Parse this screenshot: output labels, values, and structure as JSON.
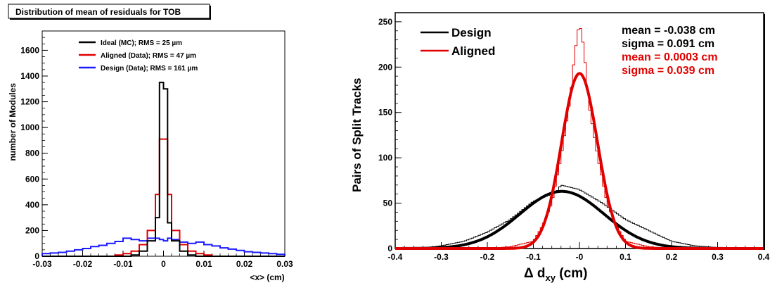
{
  "chart_data": [
    {
      "type": "line",
      "title": "Distribution of mean of residuals for TOB",
      "xlabel": "<x> (cm)",
      "ylabel": "number of Modules",
      "xlim": [
        -0.03,
        0.03
      ],
      "ylim": [
        0,
        1750
      ],
      "x_ticks": [
        "-0.03",
        "-0.02",
        "-0.01",
        "0",
        "0.01",
        "0.02",
        "0.03"
      ],
      "y_ticks": [
        "0",
        "200",
        "400",
        "600",
        "800",
        "1000",
        "1200",
        "1400",
        "1600"
      ],
      "grid": false,
      "legend_position": "top-right",
      "bin_edges": [
        -0.03,
        -0.028,
        -0.026,
        -0.024,
        -0.022,
        -0.02,
        -0.018,
        -0.016,
        -0.014,
        -0.012,
        -0.01,
        -0.008,
        -0.006,
        -0.004,
        -0.002,
        -0.001,
        0,
        0.001,
        0.002,
        0.004,
        0.006,
        0.008,
        0.01,
        0.012,
        0.014,
        0.016,
        0.018,
        0.02,
        0.022,
        0.024,
        0.026,
        0.028,
        0.03
      ],
      "series": [
        {
          "name": "Ideal (MC); RMS = 25 µm",
          "color": "#000000",
          "values": [
            0,
            0,
            0,
            0,
            0,
            0,
            0,
            0,
            0,
            0,
            0,
            10,
            40,
            120,
            300,
            1350,
            1300,
            260,
            120,
            40,
            10,
            0,
            0,
            0,
            0,
            0,
            0,
            0,
            0,
            0,
            0,
            0
          ]
        },
        {
          "name": "Aligned (Data); RMS = 47 µm",
          "color": "#e00000",
          "values": [
            0,
            0,
            0,
            0,
            0,
            0,
            0,
            0,
            0,
            10,
            20,
            40,
            90,
            200,
            480,
            910,
            910,
            480,
            200,
            90,
            40,
            20,
            10,
            0,
            0,
            0,
            0,
            0,
            0,
            0,
            0,
            0
          ]
        },
        {
          "name": "Design (Data); RMS = 161 µm",
          "color": "#1a1aff",
          "values": [
            20,
            25,
            30,
            40,
            50,
            60,
            75,
            85,
            100,
            115,
            140,
            130,
            120,
            140,
            140,
            130,
            120,
            140,
            130,
            110,
            100,
            110,
            90,
            80,
            65,
            55,
            45,
            35,
            30,
            25,
            20,
            15
          ]
        }
      ]
    },
    {
      "type": "line",
      "title": "",
      "xlabel": "Δ d_xy (cm)",
      "xlabel_main": "Δ d",
      "xlabel_sub": "xy",
      "xlabel_unit": " (cm)",
      "ylabel": "Pairs of Split Tracks",
      "xlim": [
        -0.4,
        0.4
      ],
      "ylim": [
        0,
        260
      ],
      "x_ticks": [
        "-0.4",
        "-0.3",
        "-0.2",
        "-0.1",
        "-0",
        "0.1",
        "0.2",
        "0.3",
        "0.4"
      ],
      "y_ticks": [
        "0",
        "50",
        "100",
        "150",
        "200",
        "250"
      ],
      "grid": false,
      "legend_position": "top-left",
      "stats": [
        {
          "text": "mean = -0.038 cm",
          "color": "#000000"
        },
        {
          "text": "sigma = 0.091 cm",
          "color": "#000000"
        },
        {
          "text": "mean = 0.0003 cm",
          "color": "#e00000"
        },
        {
          "text": "sigma = 0.039 cm",
          "color": "#e00000"
        }
      ],
      "series": [
        {
          "name": "Design",
          "color": "#000000",
          "fit": {
            "mean": -0.038,
            "sigma": 0.091,
            "amplitude": 63
          },
          "histogram": {
            "x": [
              -0.35,
              -0.3,
              -0.25,
              -0.2,
              -0.15,
              -0.1,
              -0.05,
              -0.04,
              0,
              0.05,
              0.1,
              0.15,
              0.2,
              0.25,
              0.3,
              0.35
            ],
            "y": [
              0,
              3,
              8,
              18,
              32,
              52,
              62,
              70,
              65,
              50,
              32,
              20,
              8,
              3,
              1,
              0
            ]
          }
        },
        {
          "name": "Aligned",
          "color": "#e00000",
          "fit": {
            "mean": 0.0003,
            "sigma": 0.039,
            "amplitude": 193
          },
          "histogram": {
            "x": [
              -0.2,
              -0.15,
              -0.1,
              -0.08,
              -0.06,
              -0.04,
              -0.02,
              -0.01,
              0,
              0.01,
              0.02,
              0.04,
              0.06,
              0.08,
              0.1,
              0.15,
              0.2
            ],
            "y": [
              0,
              2,
              8,
              25,
              50,
              100,
              165,
              215,
              250,
              220,
              160,
              100,
              50,
              25,
              8,
              2,
              0
            ]
          }
        }
      ]
    }
  ]
}
